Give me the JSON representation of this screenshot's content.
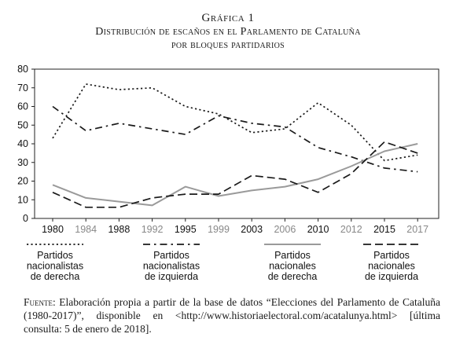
{
  "figure": {
    "label": "Gráfica 1",
    "title_line1": "Distribución de escaños en el Parlamento de Cataluña",
    "title_line2": "por bloques partidarios"
  },
  "source": {
    "label": "Fuente:",
    "text": "Elaboración propia a partir de la base de datos “Elecciones del Parlamento de Cataluña (1980-2017)”, disponible en <http://www.historiaelectoral.com/acatalunya.html> [última consulta: 5 de enero de 2018]."
  },
  "chart_data": {
    "type": "line",
    "x": [
      "1980",
      "1984",
      "1988",
      "1992",
      "1995",
      "1999",
      "2003",
      "2006",
      "2010",
      "2012",
      "2015",
      "2017"
    ],
    "x_label_colors": [
      "#111111",
      "#888888",
      "#111111",
      "#888888",
      "#111111",
      "#888888",
      "#111111",
      "#888888",
      "#111111",
      "#888888",
      "#111111",
      "#888888"
    ],
    "ylim": [
      0,
      80
    ],
    "yticks": [
      "0",
      "10",
      "20",
      "30",
      "40",
      "50",
      "60",
      "70",
      "80"
    ],
    "grid": false,
    "legend_position": "bottom",
    "series": [
      {
        "name": "Partidos nacionalistas de derecha",
        "label_lines": [
          "Partidos",
          "nacionalistas",
          "de derecha"
        ],
        "color": "#1a1a1a",
        "dash": "dotted",
        "values": [
          43,
          72,
          69,
          70,
          60,
          56,
          46,
          48,
          62,
          50,
          31,
          34
        ]
      },
      {
        "name": "Partidos nacionalistas de izquierda",
        "label_lines": [
          "Partidos",
          "nacionalistas",
          "de izquierda"
        ],
        "color": "#1a1a1a",
        "dash": "dashdot",
        "values": [
          60,
          47,
          51,
          48,
          45,
          55,
          51,
          49,
          38,
          33,
          27,
          25
        ]
      },
      {
        "name": "Partidos nacionales de derecha",
        "label_lines": [
          "Partidos",
          "nacionales",
          "de derecha"
        ],
        "color": "#9a9a9a",
        "dash": "solid",
        "values": [
          18,
          11,
          9,
          7,
          17,
          12,
          15,
          17,
          21,
          28,
          36,
          40
        ]
      },
      {
        "name": "Partidos nacionales de izquierda",
        "label_lines": [
          "Partidos",
          "nacionales",
          "de izquierda"
        ],
        "color": "#1a1a1a",
        "dash": "dashed",
        "values": [
          14,
          6,
          6,
          11,
          13,
          13,
          23,
          21,
          14,
          24,
          41,
          35
        ]
      }
    ]
  }
}
